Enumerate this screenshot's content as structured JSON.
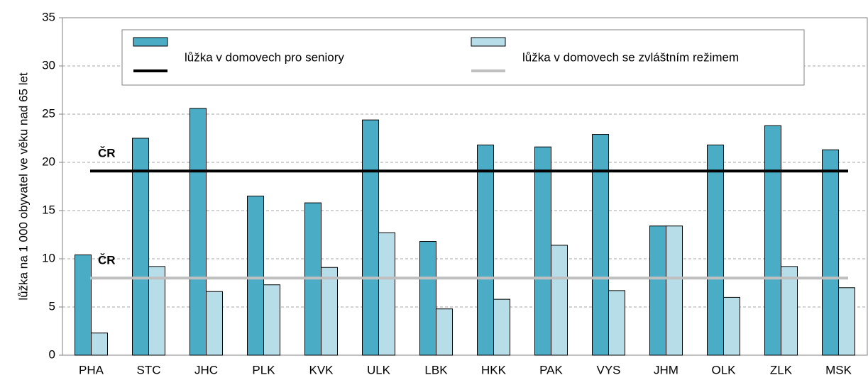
{
  "chart_data": {
    "type": "bar",
    "y_label": "lůžka na 1 000 obyvatel ve věku nad 65 let",
    "categories": [
      "PHA",
      "STC",
      "JHC",
      "PLK",
      "KVK",
      "ULK",
      "LBK",
      "HKK",
      "PAK",
      "VYS",
      "JHM",
      "OLK",
      "ZLK",
      "MSK"
    ],
    "series": [
      {
        "name": "lůžka v domovech pro seniory",
        "color": "#4bacc6",
        "values": [
          10.4,
          22.5,
          25.6,
          16.5,
          15.8,
          24.4,
          11.8,
          21.8,
          21.6,
          22.9,
          13.4,
          21.8,
          23.8,
          21.3
        ]
      },
      {
        "name": "lůžka v domovech se zvláštním režimem",
        "color": "#b7dde8",
        "values": [
          2.3,
          9.2,
          6.6,
          7.3,
          9.1,
          12.7,
          4.8,
          5.8,
          11.4,
          6.7,
          13.4,
          6.0,
          9.2,
          7.0
        ]
      }
    ],
    "reference_lines": [
      {
        "label": "ČR",
        "value": 19.1,
        "color": "#000000"
      },
      {
        "label": "ČR",
        "value": 8.0,
        "color": "#bfbfbf"
      }
    ],
    "ylim": [
      0,
      35
    ],
    "yticks": [
      0,
      5,
      10,
      15,
      20,
      25,
      30,
      35
    ],
    "grid": true
  }
}
